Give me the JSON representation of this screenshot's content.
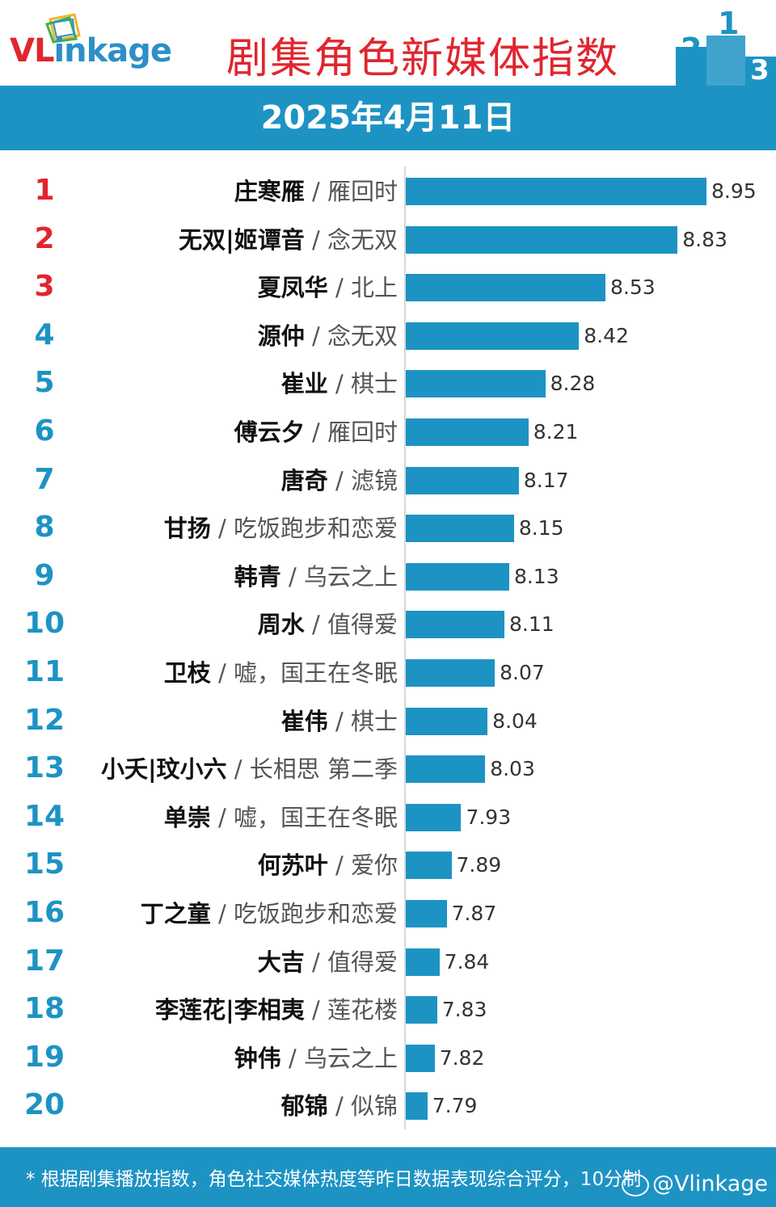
{
  "logo": {
    "part1": "VL",
    "part2": "inkage"
  },
  "title": "剧集角色新媒体指数",
  "date": "2025年4月11日",
  "colors": {
    "bar": "#1d93c4",
    "top3": "#e0262f",
    "rank": "#1d93c4",
    "title": "#e0262f"
  },
  "chart_data": {
    "type": "bar",
    "orientation": "horizontal",
    "categories": [
      "庄寒雁 / 雁回时",
      "无双|姬谭音 / 念无双",
      "夏凤华 / 北上",
      "源仲 / 念无双",
      "崔业 / 棋士",
      "傅云夕 / 雁回时",
      "唐奇 / 滤镜",
      "甘扬 / 吃饭跑步和恋爱",
      "韩青 / 乌云之上",
      "周水 / 值得爱",
      "卫枝 / 嘘，国王在冬眠",
      "崔伟 / 棋士",
      "小夭|玟小六 / 长相思 第二季",
      "单崇 / 嘘，国王在冬眠",
      "何苏叶 / 爱你",
      "丁之童 / 吃饭跑步和恋爱",
      "大吉 / 值得爱",
      "李莲花|李相夷 / 莲花楼",
      "钟伟 / 乌云之上",
      "郁锦 / 似锦"
    ],
    "values": [
      8.95,
      8.83,
      8.53,
      8.42,
      8.28,
      8.21,
      8.17,
      8.15,
      8.13,
      8.11,
      8.07,
      8.04,
      8.03,
      7.93,
      7.89,
      7.87,
      7.84,
      7.83,
      7.82,
      7.79
    ],
    "value_labels": [
      "8.95",
      "8.83",
      "8.53",
      "8.42",
      "8.28",
      "8.21",
      "8.17",
      "8.15",
      "8.13",
      "8.11",
      "8.07",
      "8.04",
      "8.03",
      "7.93",
      "7.89",
      "7.87",
      "7.84",
      "7.83",
      "7.82",
      "7.79"
    ],
    "rows": [
      {
        "rank": "1",
        "name": "庄寒雁",
        "show": "雁回时"
      },
      {
        "rank": "2",
        "name": "无双|姬谭音",
        "show": "念无双"
      },
      {
        "rank": "3",
        "name": "夏凤华",
        "show": "北上"
      },
      {
        "rank": "4",
        "name": "源仲",
        "show": "念无双"
      },
      {
        "rank": "5",
        "name": "崔业",
        "show": "棋士"
      },
      {
        "rank": "6",
        "name": "傅云夕",
        "show": "雁回时"
      },
      {
        "rank": "7",
        "name": "唐奇",
        "show": "滤镜"
      },
      {
        "rank": "8",
        "name": "甘扬",
        "show": "吃饭跑步和恋爱"
      },
      {
        "rank": "9",
        "name": "韩青",
        "show": "乌云之上"
      },
      {
        "rank": "10",
        "name": "周水",
        "show": "值得爱"
      },
      {
        "rank": "11",
        "name": "卫枝",
        "show": "嘘，国王在冬眠"
      },
      {
        "rank": "12",
        "name": "崔伟",
        "show": "棋士"
      },
      {
        "rank": "13",
        "name": "小夭|玟小六",
        "show": "长相思 第二季"
      },
      {
        "rank": "14",
        "name": "单崇",
        "show": "嘘，国王在冬眠"
      },
      {
        "rank": "15",
        "name": "何苏叶",
        "show": "爱你"
      },
      {
        "rank": "16",
        "name": "丁之童",
        "show": "吃饭跑步和恋爱"
      },
      {
        "rank": "17",
        "name": "大吉",
        "show": "值得爱"
      },
      {
        "rank": "18",
        "name": "李莲花|李相夷",
        "show": "莲花楼"
      },
      {
        "rank": "19",
        "name": "钟伟",
        "show": "乌云之上"
      },
      {
        "rank": "20",
        "name": "郁锦",
        "show": "似锦"
      }
    ],
    "separator": "/",
    "title": "剧集角色新媒体指数",
    "subtitle": "2025年4月11日",
    "xlim": [
      7.7,
      9.0
    ],
    "grid": false,
    "legend": "none"
  },
  "footer": {
    "note": "* 根据剧集播放指数，角色社交媒体热度等昨日数据表现综合评分，10分制",
    "watermark": "@Vlinkage"
  },
  "podium_numbers": [
    "2",
    "1",
    "3"
  ]
}
